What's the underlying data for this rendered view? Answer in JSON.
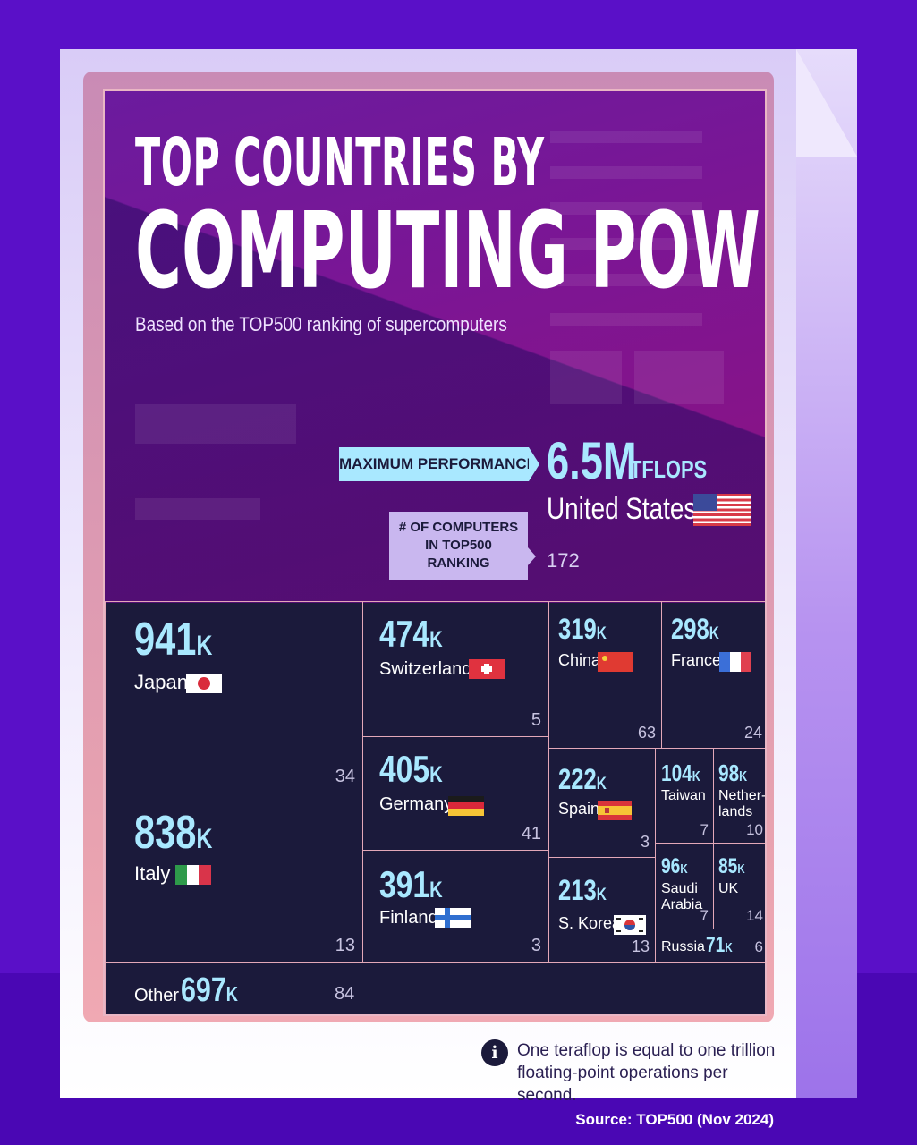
{
  "header": {
    "title_line1": "TOP COUNTRIES BY",
    "title_line2": "COMPUTING POWER",
    "subtitle": "Based on the TOP500 ranking of supercomputers"
  },
  "highlight": {
    "max_label": "MAXIMUM PERFORMANCE",
    "value": "6.5M",
    "unit": "TFLOPS",
    "country": "United States",
    "count_label": "# OF COMPUTERS IN TOP500 RANKING",
    "count": "172"
  },
  "footnote": "One teraflop is equal to one trillion floating-point operations per second.",
  "source": "Source: TOP500 (Nov 2024)",
  "colors": {
    "accent": "#a9e8ff",
    "background": "#5a10c8",
    "panel": "#1b1a3b"
  },
  "chart_data": {
    "type": "treemap",
    "title": "TOP COUNTRIES BY COMPUTING POWER",
    "subtitle": "Based on the TOP500 ranking of supercomputers",
    "value_unit": "TFLOPS",
    "series": [
      {
        "country": "United States",
        "performance_label": "6.5M",
        "computers": 172
      },
      {
        "country": "Japan",
        "performance_label": "941K",
        "computers": 34
      },
      {
        "country": "Italy",
        "performance_label": "838K",
        "computers": 13
      },
      {
        "country": "Switzerland",
        "performance_label": "474K",
        "computers": 5
      },
      {
        "country": "Germany",
        "performance_label": "405K",
        "computers": 41
      },
      {
        "country": "Finland",
        "performance_label": "391K",
        "computers": 3
      },
      {
        "country": "China",
        "performance_label": "319K",
        "computers": 63
      },
      {
        "country": "France",
        "performance_label": "298K",
        "computers": 24
      },
      {
        "country": "Spain",
        "performance_label": "222K",
        "computers": 3
      },
      {
        "country": "S. Korea",
        "performance_label": "213K",
        "computers": 13
      },
      {
        "country": "Taiwan",
        "performance_label": "104K",
        "computers": 7
      },
      {
        "country": "Netherlands",
        "performance_label": "98K",
        "computers": 10
      },
      {
        "country": "Saudi Arabia",
        "performance_label": "96K",
        "computers": 7
      },
      {
        "country": "UK",
        "performance_label": "85K",
        "computers": 14
      },
      {
        "country": "Russia",
        "performance_label": "71K",
        "computers": 6
      },
      {
        "country": "Other",
        "performance_label": "697K",
        "computers": 84
      }
    ]
  },
  "cells": {
    "japan": {
      "num": "941",
      "unit": "K",
      "name": "Japan",
      "count": "34"
    },
    "italy": {
      "num": "838",
      "unit": "K",
      "name": "Italy",
      "count": "13"
    },
    "switzerland": {
      "num": "474",
      "unit": "K",
      "name": "Switzerland",
      "count": "5"
    },
    "germany": {
      "num": "405",
      "unit": "K",
      "name": "Germany",
      "count": "41"
    },
    "finland": {
      "num": "391",
      "unit": "K",
      "name": "Finland",
      "count": "3"
    },
    "china": {
      "num": "319",
      "unit": "K",
      "name": "China",
      "count": "63"
    },
    "france": {
      "num": "298",
      "unit": "K",
      "name": "France",
      "count": "24"
    },
    "spain": {
      "num": "222",
      "unit": "K",
      "name": "Spain",
      "count": "3"
    },
    "skorea": {
      "num": "213",
      "unit": "K",
      "name": "S. Korea",
      "count": "13"
    },
    "taiwan": {
      "num": "104",
      "unit": "K",
      "name": "Taiwan",
      "count": "7"
    },
    "netherlands": {
      "num": "98",
      "unit": "K",
      "name1": "Nether-",
      "name2": "lands",
      "count": "10"
    },
    "saudi": {
      "num": "96",
      "unit": "K",
      "name1": "Saudi",
      "name2": "Arabia",
      "count": "7"
    },
    "uk": {
      "num": "85",
      "unit": "K",
      "name": "UK",
      "count": "14"
    },
    "russia": {
      "num": "71",
      "unit": "K",
      "name": "Russia",
      "count": "6"
    },
    "other": {
      "num": "697",
      "unit": "K",
      "name": "Other",
      "count": "84"
    }
  }
}
